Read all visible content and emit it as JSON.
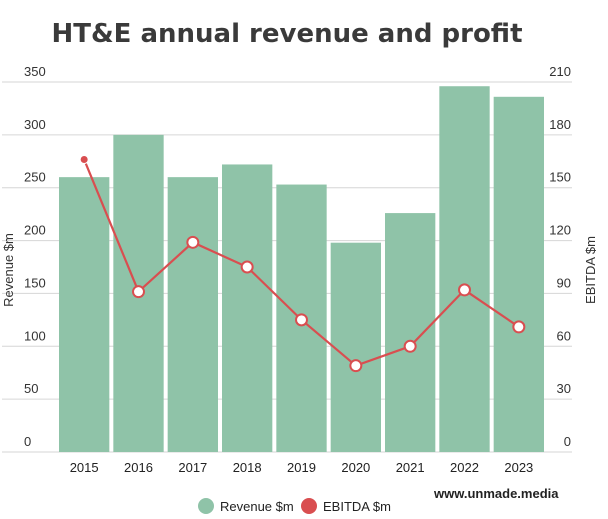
{
  "chart_data": {
    "type": "bar",
    "title": "HT&E annual revenue and profit",
    "categories": [
      "2015",
      "2016",
      "2017",
      "2018",
      "2019",
      "2020",
      "2021",
      "2022",
      "2023"
    ],
    "series": [
      {
        "name": "Revenue $m",
        "type": "bar",
        "axis": "left",
        "color": "#8fc3a8",
        "values": [
          260,
          300,
          260,
          272,
          253,
          198,
          226,
          346,
          336
        ]
      },
      {
        "name": "EBITDA $m",
        "type": "line",
        "axis": "right",
        "color": "#d94e50",
        "values": [
          166,
          91,
          119,
          105,
          75,
          49,
          60,
          92,
          71
        ]
      }
    ],
    "ylabel": "Revenue $m",
    "y2label": "EBITDA $m",
    "ylim": [
      0,
      350
    ],
    "y2lim": [
      0,
      210
    ],
    "yticks": [
      "0",
      "50",
      "100",
      "150",
      "200",
      "250",
      "300",
      "350"
    ],
    "y2ticks": [
      "0",
      "30",
      "60",
      "90",
      "120",
      "150",
      "180",
      "210"
    ],
    "grid": true,
    "legend_position": "bottom",
    "source": "www.unmade.media"
  }
}
